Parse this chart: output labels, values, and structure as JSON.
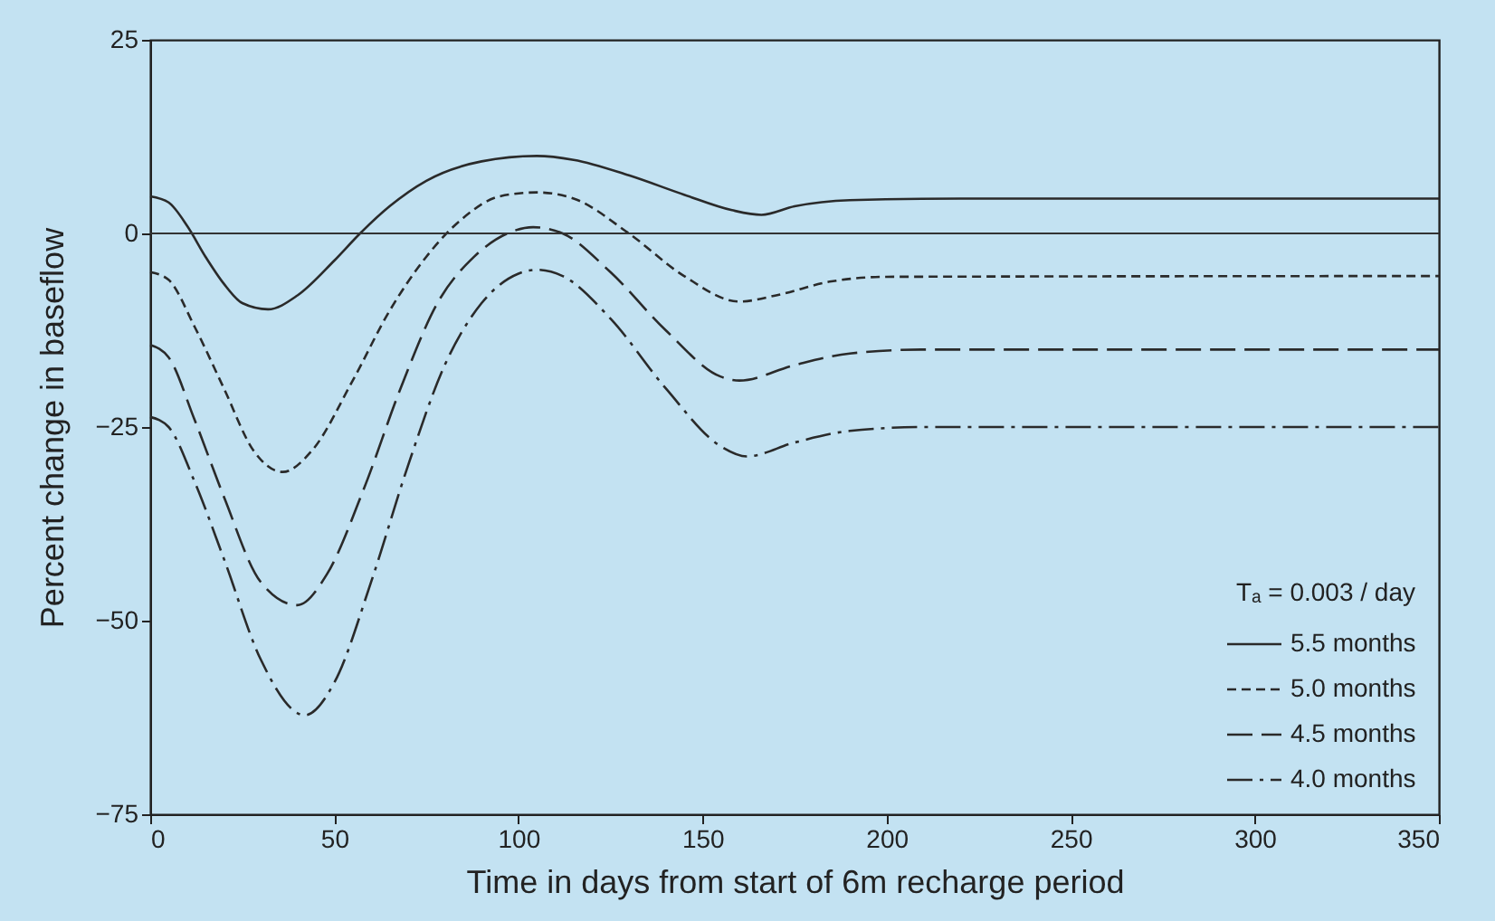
{
  "chart_data": {
    "type": "line",
    "xlabel": "Time in days from start of 6m recharge period",
    "ylabel": "Percent change in baseflow",
    "legend_title": "Tₐ = 0.003 / day",
    "legend": "bottom right",
    "grid": false,
    "marker": "none",
    "xlim": [
      0,
      350
    ],
    "xticks": [
      0,
      50,
      100,
      150,
      200,
      250,
      300,
      350
    ],
    "ylim": [
      -75,
      25
    ],
    "yticks": [
      -75,
      -50,
      -25,
      0,
      25
    ],
    "ref_lines": [
      {
        "axis": "y",
        "value": 0,
        "color": "#333333"
      }
    ],
    "series": [
      {
        "name": "5.5 months",
        "color": "#2a2a2a",
        "line_style": "solid",
        "x": [
          0,
          5,
          10,
          15,
          20,
          25,
          32,
          40,
          50,
          57,
          65,
          75,
          90,
          105,
          115,
          130,
          145,
          158,
          166,
          175,
          190,
          220,
          350
        ],
        "values": [
          4.8,
          4,
          1,
          -3,
          -6.5,
          -9,
          -9.8,
          -8,
          -3.5,
          0,
          3.5,
          6.8,
          9.3,
          10,
          9.5,
          7.5,
          5,
          3,
          2.4,
          3.5,
          4.3,
          4.5,
          4.5
        ]
      },
      {
        "name": "5.0 months",
        "color": "#2a2a2a",
        "line_style": "dashed",
        "x": [
          0,
          5,
          12,
          20,
          28,
          36,
          44,
          55,
          65,
          75,
          85,
          95,
          105,
          115,
          130,
          145,
          160,
          170,
          185,
          200,
          350
        ],
        "values": [
          -5,
          -6,
          -12,
          -20,
          -28,
          -30.8,
          -28,
          -19,
          -10,
          -3,
          2,
          4.8,
          5.3,
          4.5,
          0,
          -5.5,
          -8.8,
          -8,
          -6.2,
          -5.6,
          -5.5
        ]
      },
      {
        "name": "4.5 months",
        "color": "#2a2a2a",
        "line_style": "dashed",
        "x": [
          0,
          5,
          12,
          20,
          30,
          40,
          48,
          58,
          68,
          78,
          88,
          98,
          104,
          112,
          125,
          140,
          155,
          160,
          175,
          190,
          210,
          350
        ],
        "values": [
          -14.4,
          -16,
          -24,
          -34,
          -45,
          -48,
          -44,
          -33,
          -20,
          -9,
          -3,
          0.2,
          0.8,
          0,
          -5,
          -12.5,
          -18.5,
          -19,
          -17,
          -15.5,
          -15,
          -15
        ]
      },
      {
        "name": "4.0 months",
        "color": "#2a2a2a",
        "line_style": "dashed",
        "x": [
          0,
          5,
          12,
          20,
          30,
          42,
          50,
          60,
          70,
          80,
          90,
          100,
          105,
          112,
          125,
          140,
          155,
          162,
          175,
          190,
          210,
          350
        ],
        "values": [
          -23.7,
          -25,
          -32,
          -42,
          -55,
          -62.2,
          -58,
          -45,
          -30,
          -17,
          -9,
          -5.2,
          -4.7,
          -5.5,
          -11,
          -20,
          -27.5,
          -28.8,
          -27,
          -25.5,
          -25,
          -25
        ]
      }
    ]
  }
}
